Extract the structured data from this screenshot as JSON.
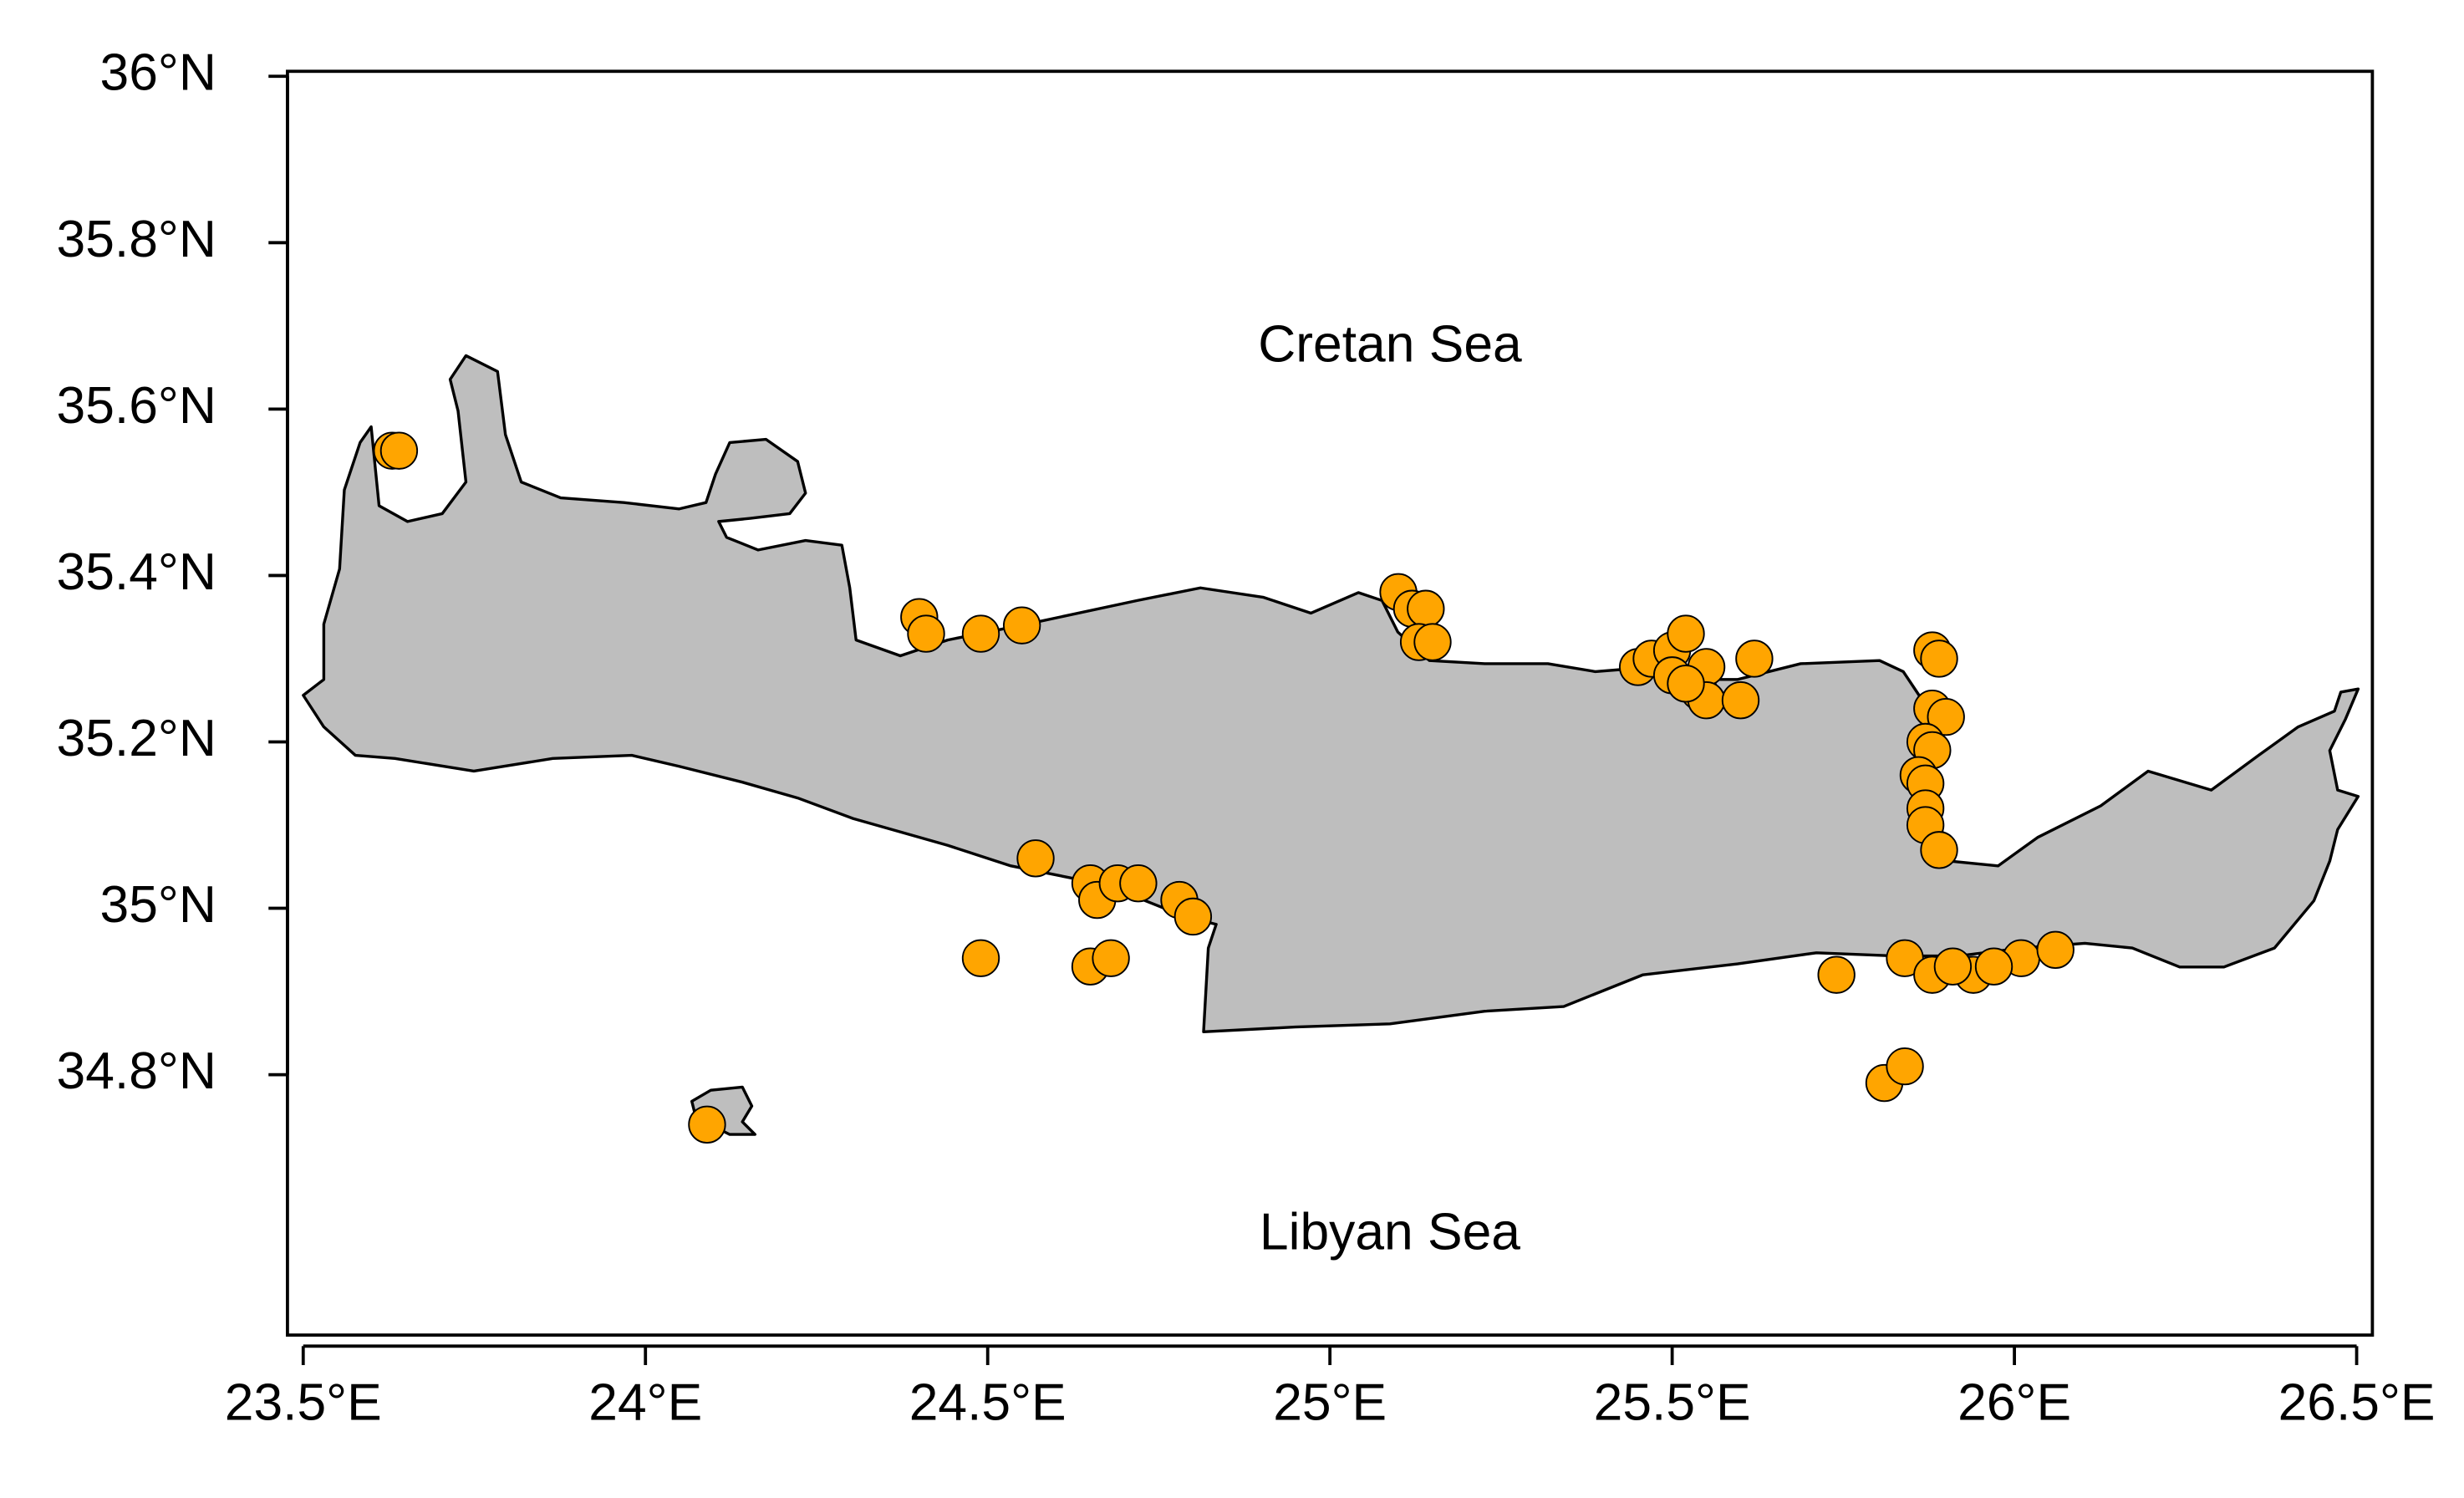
{
  "chart_data": {
    "type": "scatter",
    "color": "#FFA500",
    "xlim": [
      23.477,
      26.523
    ],
    "ylim": [
      34.487,
      36.006
    ],
    "xticks": [
      {
        "value": 23.5,
        "label": "23.5°E"
      },
      {
        "value": 24,
        "label": "24°E"
      },
      {
        "value": 24.5,
        "label": "24.5°E"
      },
      {
        "value": 25,
        "label": "25°E"
      },
      {
        "value": 25.5,
        "label": "25.5°E"
      },
      {
        "value": 26,
        "label": "26°E"
      },
      {
        "value": 26.5,
        "label": "26.5°E"
      }
    ],
    "yticks": [
      {
        "value": 36,
        "label": "36°N"
      },
      {
        "value": 35.8,
        "label": "35.8°N"
      },
      {
        "value": 35.6,
        "label": "35.6°N"
      },
      {
        "value": 35.4,
        "label": "35.4°N"
      },
      {
        "value": 35.2,
        "label": "35.2°N"
      },
      {
        "value": 35,
        "label": "35°N"
      },
      {
        "value": 34.8,
        "label": "34.8°N"
      }
    ],
    "annotations": [
      "Cretan Sea",
      "Libyan Sea"
    ],
    "x": [
      23.63,
      23.64,
      24.4,
      24.41,
      24.49,
      24.55,
      25.1,
      25.12,
      25.14,
      25.13,
      25.15,
      25.45,
      25.47,
      25.5,
      25.52,
      25.5,
      25.54,
      25.55,
      25.55,
      25.6,
      25.62,
      25.52,
      25.88,
      25.89,
      25.88,
      25.9,
      25.87,
      25.88,
      25.86,
      25.87,
      25.87,
      25.87,
      25.89,
      24.57,
      24.65,
      24.66,
      24.69,
      24.72,
      24.78,
      24.8,
      24.49,
      24.65,
      24.68,
      25.74,
      25.84,
      25.88,
      25.94,
      26.01,
      26.06,
      25.91,
      25.97,
      25.81,
      25.84,
      24.09
    ],
    "values": [
      35.55,
      35.55,
      35.35,
      35.33,
      35.33,
      35.34,
      35.38,
      35.36,
      35.36,
      35.32,
      35.32,
      35.29,
      35.3,
      35.31,
      35.33,
      35.28,
      35.26,
      35.29,
      35.25,
      35.25,
      35.3,
      35.27,
      35.31,
      35.3,
      35.24,
      35.23,
      35.2,
      35.19,
      35.16,
      35.15,
      35.12,
      35.1,
      35.07,
      35.06,
      35.03,
      35.01,
      35.03,
      35.03,
      35.01,
      34.99,
      34.94,
      34.93,
      34.94,
      34.92,
      34.94,
      34.92,
      34.92,
      34.94,
      34.95,
      34.93,
      34.93,
      34.79,
      34.81,
      34.74
    ]
  }
}
